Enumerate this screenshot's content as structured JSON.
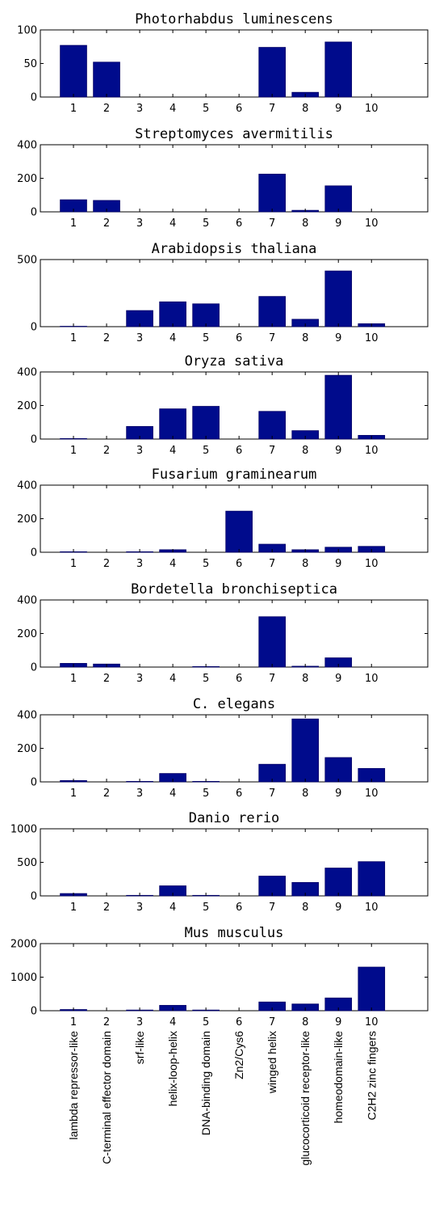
{
  "chart_data": [
    {
      "type": "bar",
      "title": "Photorhabdus luminescens",
      "x": [
        1,
        2,
        3,
        4,
        5,
        6,
        7,
        8,
        9,
        10
      ],
      "values": [
        77,
        52,
        0,
        0,
        0,
        0,
        74,
        7,
        82,
        0
      ],
      "ylim": [
        0,
        100
      ],
      "yticks": [
        0,
        50,
        100
      ]
    },
    {
      "type": "bar",
      "title": "Streptomyces avermitilis",
      "x": [
        1,
        2,
        3,
        4,
        5,
        6,
        7,
        8,
        9,
        10
      ],
      "values": [
        72,
        68,
        0,
        0,
        0,
        0,
        225,
        9,
        155,
        0
      ],
      "ylim": [
        0,
        400
      ],
      "yticks": [
        0,
        200,
        400
      ]
    },
    {
      "type": "bar",
      "title": "Arabidopsis thaliana",
      "x": [
        1,
        2,
        3,
        4,
        5,
        6,
        7,
        8,
        9,
        10
      ],
      "values": [
        3,
        0,
        120,
        185,
        170,
        0,
        225,
        55,
        415,
        22
      ],
      "ylim": [
        0,
        500
      ],
      "yticks": [
        0,
        500
      ]
    },
    {
      "type": "bar",
      "title": "Oryza sativa",
      "x": [
        1,
        2,
        3,
        4,
        5,
        6,
        7,
        8,
        9,
        10
      ],
      "values": [
        3,
        0,
        75,
        180,
        195,
        0,
        165,
        50,
        380,
        22
      ],
      "ylim": [
        0,
        400
      ],
      "yticks": [
        0,
        200,
        400
      ]
    },
    {
      "type": "bar",
      "title": "Fusarium graminearum",
      "x": [
        1,
        2,
        3,
        4,
        5,
        6,
        7,
        8,
        9,
        10
      ],
      "values": [
        3,
        0,
        3,
        15,
        0,
        245,
        48,
        15,
        30,
        35
      ],
      "ylim": [
        0,
        400
      ],
      "yticks": [
        0,
        200,
        400
      ]
    },
    {
      "type": "bar",
      "title": "Bordetella bronchiseptica",
      "x": [
        1,
        2,
        3,
        4,
        5,
        6,
        7,
        8,
        9,
        10
      ],
      "values": [
        22,
        18,
        0,
        0,
        3,
        0,
        300,
        5,
        55,
        0
      ],
      "ylim": [
        0,
        400
      ],
      "yticks": [
        0,
        200,
        400
      ]
    },
    {
      "type": "bar",
      "title": "C. elegans",
      "x": [
        1,
        2,
        3,
        4,
        5,
        6,
        7,
        8,
        9,
        10
      ],
      "values": [
        8,
        0,
        3,
        50,
        3,
        0,
        105,
        375,
        145,
        80
      ],
      "ylim": [
        0,
        400
      ],
      "yticks": [
        0,
        200,
        400
      ]
    },
    {
      "type": "bar",
      "title": "Danio rerio",
      "x": [
        1,
        2,
        3,
        4,
        5,
        6,
        7,
        8,
        9,
        10
      ],
      "values": [
        35,
        0,
        8,
        150,
        8,
        0,
        295,
        200,
        415,
        510
      ],
      "ylim": [
        0,
        1000
      ],
      "yticks": [
        0,
        500,
        1000
      ]
    },
    {
      "type": "bar",
      "title": "Mus musculus",
      "x": [
        1,
        2,
        3,
        4,
        5,
        6,
        7,
        8,
        9,
        10
      ],
      "values": [
        35,
        0,
        20,
        160,
        20,
        0,
        260,
        200,
        380,
        1300
      ],
      "ylim": [
        0,
        2000
      ],
      "yticks": [
        0,
        1000,
        2000
      ]
    }
  ],
  "categories": [
    "lambda repressor-like",
    "C-terminal effector domain",
    "srf-like",
    "helix-loop-helix",
    "DNA-binding domain",
    "Zn2/Cys6",
    "winged helix",
    "glucocorticoid receptor-like",
    "homeodomain-like",
    "C2H2 zinc fingers"
  ],
  "colors": {
    "bar": "#000b8c",
    "bar_edge": "#000066"
  }
}
